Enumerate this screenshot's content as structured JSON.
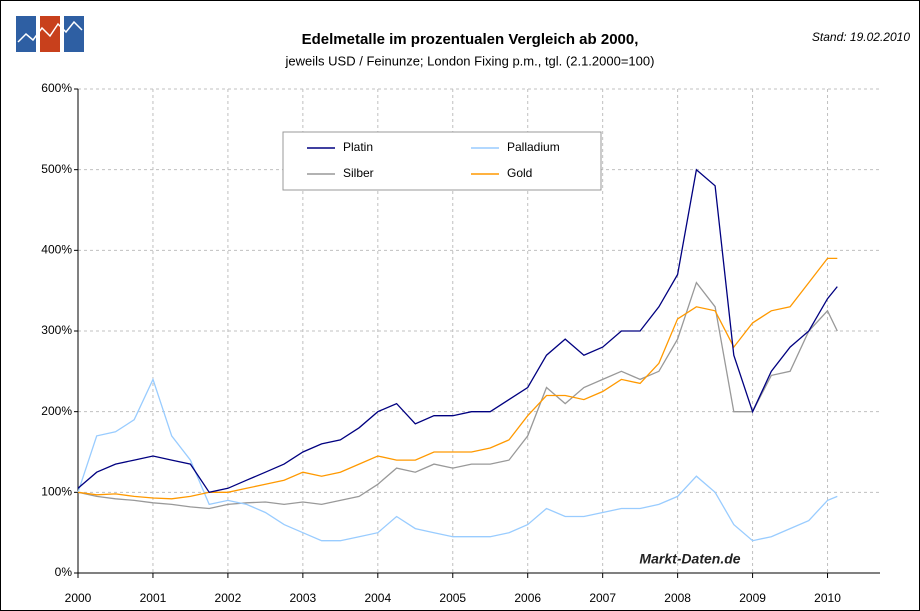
{
  "chart_data": {
    "type": "line",
    "title": "Edelmetalle im prozentualen Vergleich ab 2000,",
    "subtitle": "jeweils USD / Feinunze; London Fixing p.m., tgl. (2.1.2000=100)",
    "annotations": [
      "Stand: 19.02.2010",
      "Markt-Daten.de"
    ],
    "x": [
      2000,
      2000.25,
      2000.5,
      2000.75,
      2001,
      2001.25,
      2001.5,
      2001.75,
      2002,
      2002.25,
      2002.5,
      2002.75,
      2003,
      2003.25,
      2003.5,
      2003.75,
      2004,
      2004.25,
      2004.5,
      2004.75,
      2005,
      2005.25,
      2005.5,
      2005.75,
      2006,
      2006.25,
      2006.5,
      2006.75,
      2007,
      2007.25,
      2007.5,
      2007.75,
      2008,
      2008.25,
      2008.5,
      2008.75,
      2009,
      2009.25,
      2009.5,
      2009.75,
      2010,
      2010.13
    ],
    "series": [
      {
        "name": "Platin",
        "color": "#000080",
        "values": [
          105,
          125,
          135,
          140,
          145,
          140,
          135,
          100,
          105,
          115,
          125,
          135,
          150,
          160,
          165,
          180,
          200,
          210,
          185,
          195,
          195,
          200,
          200,
          215,
          230,
          270,
          290,
          270,
          280,
          300,
          300,
          330,
          370,
          500,
          480,
          270,
          200,
          250,
          280,
          300,
          340,
          355
        ]
      },
      {
        "name": "Palladium",
        "color": "#99ccff",
        "values": [
          100,
          170,
          175,
          190,
          240,
          170,
          140,
          85,
          90,
          85,
          75,
          60,
          50,
          40,
          40,
          45,
          50,
          70,
          55,
          50,
          45,
          45,
          45,
          50,
          60,
          80,
          70,
          70,
          75,
          80,
          80,
          85,
          95,
          120,
          100,
          60,
          40,
          45,
          55,
          65,
          90,
          95
        ]
      },
      {
        "name": "Silber",
        "color": "#999999",
        "values": [
          100,
          95,
          92,
          90,
          87,
          85,
          82,
          80,
          85,
          87,
          88,
          85,
          88,
          85,
          90,
          95,
          110,
          130,
          125,
          135,
          130,
          135,
          135,
          140,
          170,
          230,
          210,
          230,
          240,
          250,
          240,
          250,
          290,
          360,
          330,
          200,
          200,
          245,
          250,
          300,
          325,
          300
        ]
      },
      {
        "name": "Gold",
        "color": "#ff9900",
        "values": [
          100,
          97,
          98,
          95,
          93,
          92,
          95,
          100,
          100,
          105,
          110,
          115,
          125,
          120,
          125,
          135,
          145,
          140,
          140,
          150,
          150,
          150,
          155,
          165,
          195,
          220,
          220,
          215,
          225,
          240,
          235,
          260,
          315,
          330,
          325,
          280,
          310,
          325,
          330,
          360,
          390,
          390
        ]
      }
    ],
    "xlim": [
      2000,
      2010.7
    ],
    "xticks": [
      2000,
      2001,
      2002,
      2003,
      2004,
      2005,
      2006,
      2007,
      2008,
      2009,
      2010
    ],
    "ylim": [
      0,
      600
    ],
    "yticks": [
      {
        "value": 0,
        "label": "0%"
      },
      {
        "value": 100,
        "label": "100%"
      },
      {
        "value": 200,
        "label": "200%"
      },
      {
        "value": 300,
        "label": "300%"
      },
      {
        "value": 400,
        "label": "400%"
      },
      {
        "value": 500,
        "label": "500%"
      },
      {
        "value": 600,
        "label": "600%"
      }
    ],
    "grid": true,
    "legend": "upper left"
  }
}
